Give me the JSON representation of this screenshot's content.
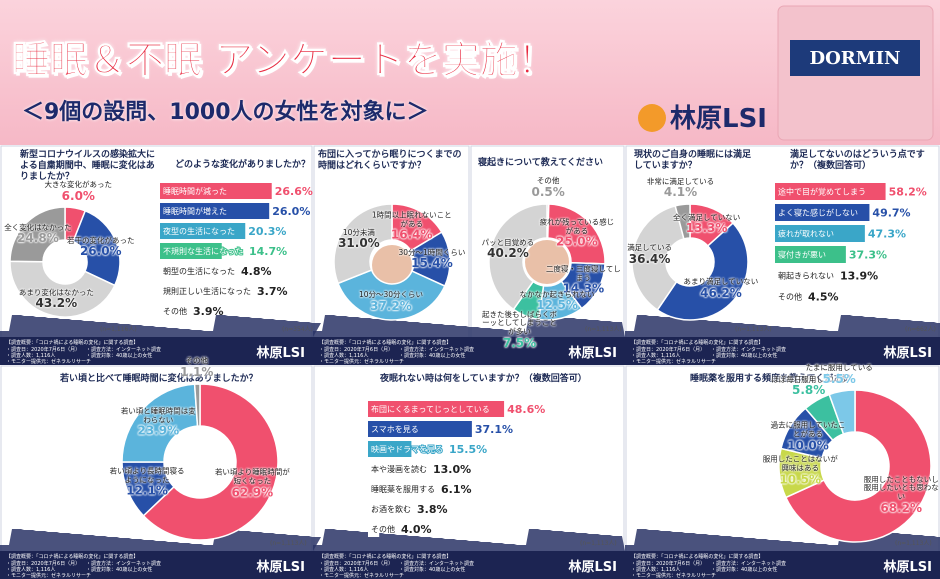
{
  "header": {
    "title": "睡眠＆不眠 アンケートを実施！",
    "subtitle": "＜9個の設問、1000人の女性を対象に＞",
    "brand": "林原LSI",
    "product": "DORMIN"
  },
  "survey": {
    "heading": "【調査概要：「コロナ禍による睡眠の変化」に関する調査】",
    "lines": [
      "・調査日：2020年7月6日（月）",
      "・調査方法：インターネット調査",
      "・調査人数：1,116人",
      "・調査対象：40歳以上の女性",
      "・モニター提供元：ゼネラルリサーチ"
    ]
  },
  "chart_data": [
    {
      "type": "pie",
      "title": "新型コロナウイルスの感染拡大による自粛期間中、睡眠に変化はありましたか？",
      "categories": [
        "大きな変化があった",
        "若干の変化があった",
        "あまり変化はなかった",
        "全く変化はなかった"
      ],
      "values": [
        6.0,
        26.0,
        43.2,
        24.8
      ],
      "value_labels": [
        "6.0%",
        "26.0%",
        "43.2%",
        "24.8%"
      ],
      "colors": [
        "#f0506e",
        "#2750a8",
        "#d4d4d4",
        "#9a9a9a"
      ],
      "note": "(n=1,116人)"
    },
    {
      "type": "bar",
      "title": "どのような変化がありましたか？",
      "categories": [
        "睡眠時間が減った",
        "睡眠時間が増えた",
        "夜型の生活になった",
        "不規則な生活になった",
        "朝型の生活になった",
        "規則正しい生活になった",
        "その他"
      ],
      "values": [
        26.6,
        26.0,
        20.3,
        14.7,
        4.8,
        3.7,
        3.9
      ],
      "value_labels": [
        "26.6%",
        "26.0%",
        "20.3%",
        "14.7%",
        "4.8%",
        "3.7%",
        "3.9%"
      ],
      "colors": [
        "#f0506e",
        "#2750a8",
        "#3aa6c8",
        "#3cc08a",
        "#ffffff",
        "#ffffff",
        "#ffffff"
      ],
      "note": "(n=354人)"
    },
    {
      "type": "pie",
      "title": "布団に入ってから眠りにつくまでの時間はどれくらいですか？",
      "categories": [
        "1時間以上眠れないことがある",
        "30分～1時間くらい",
        "10分～30分くらい",
        "10分未満"
      ],
      "values": [
        16.4,
        15.4,
        37.2,
        31.0
      ],
      "value_labels": [
        "16.4%",
        "15.4%",
        "37.2%",
        "31.0%"
      ],
      "colors": [
        "#f0506e",
        "#2750a8",
        "#5bb4dc",
        "#d4d4d4"
      ]
    },
    {
      "type": "pie",
      "title": "寝起きについて教えてください",
      "categories": [
        "その他",
        "疲れが残っている感じがある",
        "二度寝・三度寝してしまう",
        "なかなか起きられない",
        "起きた後もしばらくボーッとしてしまうことが多い",
        "パッと目覚める"
      ],
      "values": [
        0.5,
        25.0,
        14.3,
        12.5,
        7.5,
        40.2
      ],
      "value_labels": [
        "0.5%",
        "25.0%",
        "14.3%",
        "12.5%",
        "7.5%",
        "40.2%"
      ],
      "colors": [
        "#9a9a9a",
        "#f0506e",
        "#2750a8",
        "#5bb4dc",
        "#3cc0a0",
        "#d4d4d4"
      ],
      "note": "(n=1,113人)"
    },
    {
      "type": "pie",
      "title": "現状のご自身の睡眠には満足していますか？",
      "categories": [
        "全く満足していない",
        "あまり満足していない",
        "満足している",
        "非常に満足している"
      ],
      "values": [
        13.3,
        46.2,
        36.4,
        4.1
      ],
      "value_labels": [
        "13.3%",
        "46.2%",
        "36.4%",
        "4.1%"
      ],
      "colors": [
        "#f0506e",
        "#2750a8",
        "#d4d4d4",
        "#9a9a9a"
      ],
      "note": "(n=1,113人)"
    },
    {
      "type": "bar",
      "title": "満足してないのはどういう点ですか？（複数回答可）",
      "categories": [
        "途中で目が覚めてしまう",
        "よく寝た感じがしない",
        "疲れが取れない",
        "寝付きが悪い",
        "朝起きられない",
        "その他"
      ],
      "values": [
        58.2,
        49.7,
        47.3,
        37.3,
        13.9,
        4.5
      ],
      "value_labels": [
        "58.2%",
        "49.7%",
        "47.3%",
        "37.3%",
        "13.9%",
        "4.5%"
      ],
      "colors": [
        "#f0506e",
        "#2750a8",
        "#3aa6c8",
        "#3cc08a",
        "#ffffff",
        "#ffffff"
      ],
      "note": "(n=662人)"
    },
    {
      "type": "pie",
      "title": "若い頃と比べて睡眠時間に変化はありましたか？",
      "categories": [
        "若い頃より睡眠時間が短くなった",
        "若い頃より長時間寝るようになった",
        "若い頃と睡眠時間は変わらない",
        "その他"
      ],
      "values": [
        62.9,
        12.1,
        23.9,
        1.1
      ],
      "value_labels": [
        "62.9%",
        "12.1%",
        "23.9%",
        "1.1%"
      ],
      "colors": [
        "#f0506e",
        "#2750a8",
        "#5bb4dc",
        "#9a9a9a"
      ],
      "note": "(n=1,113人)"
    },
    {
      "type": "bar",
      "title": "夜眠れない時は何をしていますか？（複数回答可）",
      "categories": [
        "布団にくるまってじっとしている",
        "スマホを見る",
        "映画やドラマを見る",
        "本や漫画を読む",
        "睡眠薬を服用する",
        "お酒を飲む",
        "その他"
      ],
      "values": [
        48.6,
        37.1,
        15.5,
        13.0,
        6.1,
        3.8,
        4.0
      ],
      "value_labels": [
        "48.6%",
        "37.1%",
        "15.5%",
        "13.0%",
        "6.1%",
        "3.8%",
        "4.0%"
      ],
      "colors": [
        "#f0506e",
        "#2750a8",
        "#3aa6c8",
        "#ffffff",
        "#ffffff",
        "#ffffff",
        "#ffffff"
      ],
      "note": "(n=1,113人)"
    },
    {
      "type": "pie",
      "title": "睡眠薬を服用する頻度を教えてください",
      "categories": [
        "服用したこともないし服用したいとも思わない",
        "服用したことはないが興味はある",
        "過去に服用していたことがある",
        "ほぼ毎日服用している",
        "たまに服用している"
      ],
      "values": [
        68.2,
        10.5,
        10.0,
        5.8,
        5.5
      ],
      "value_labels": [
        "68.2%",
        "10.5%",
        "10.0%",
        "5.8%",
        "5.5%"
      ],
      "colors": [
        "#f0506e",
        "#c8d84a",
        "#2750a8",
        "#3cc0a0",
        "#7cc8e8"
      ],
      "note": "(n=1,113人)"
    }
  ]
}
